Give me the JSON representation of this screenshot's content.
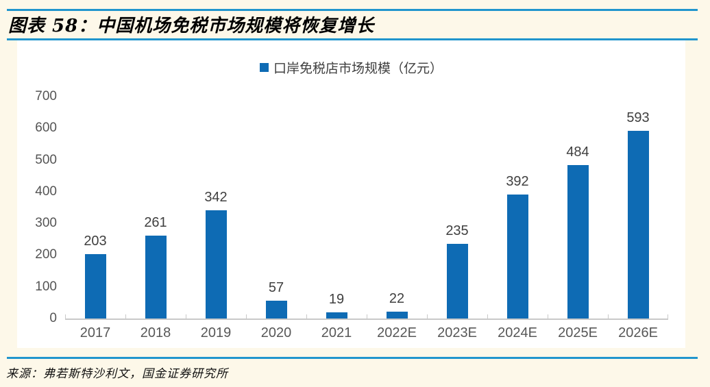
{
  "header": {
    "title": "图表 58：中国机场免税市场规模将恢复增长"
  },
  "legend": {
    "label": "口岸免税店市场规模（亿元）"
  },
  "footer": {
    "source": "来源：弗若斯特沙利文，国金证券研究所"
  },
  "colors": {
    "bar": "#0E6BB4",
    "rule_blue": "#2095CD",
    "page_background": "#FDF8E9",
    "panel_background": "#FFFFFF",
    "axis_gray": "#C9C9C9",
    "label_gray": "#3F3F3F"
  },
  "chart_data": {
    "type": "bar",
    "title": "图表 58：中国机场免税市场规模将恢复增长",
    "legend": [
      "口岸免税店市场规模（亿元）"
    ],
    "legend_position": "top-center",
    "categories": [
      "2017",
      "2018",
      "2019",
      "2020",
      "2021",
      "2022E",
      "2023E",
      "2024E",
      "2025E",
      "2026E"
    ],
    "values": [
      203,
      261,
      342,
      57,
      19,
      22,
      235,
      392,
      484,
      593
    ],
    "xlabel": "",
    "ylabel": "",
    "ylim": [
      0,
      700
    ],
    "yticks": [
      0,
      100,
      200,
      300,
      400,
      500,
      600,
      700
    ],
    "grid": false,
    "data_labels": true,
    "source": "来源：弗若斯特沙利文，国金证券研究所"
  }
}
